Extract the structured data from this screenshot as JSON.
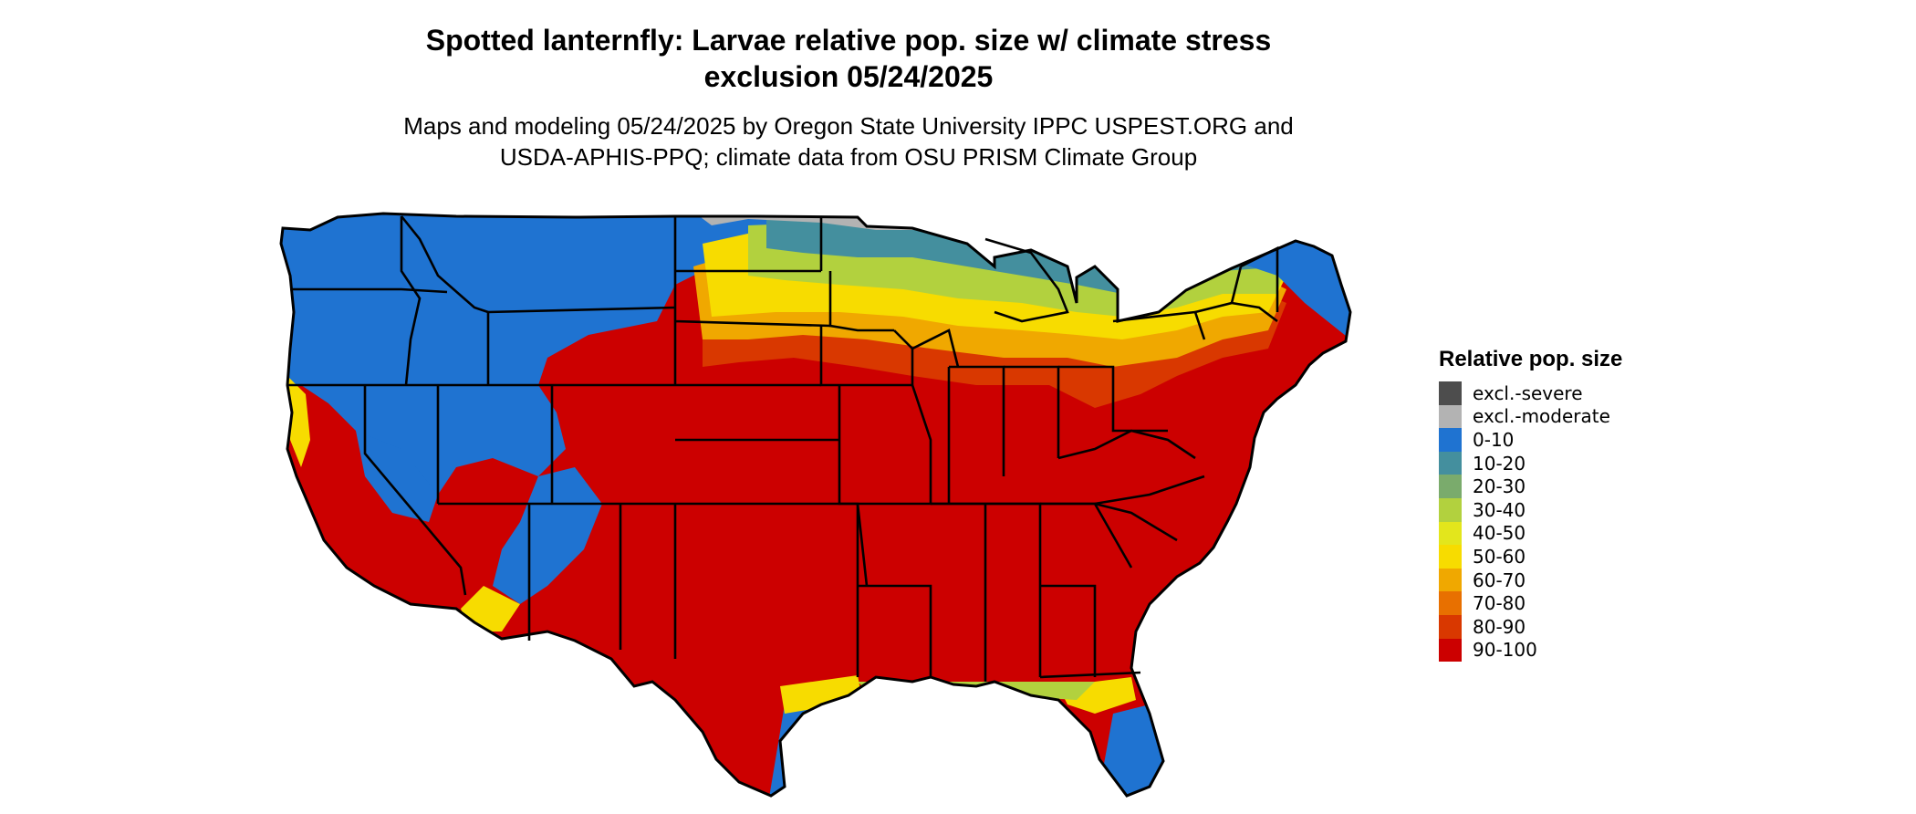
{
  "title": {
    "line1": "Spotted lanternfly: Larvae relative pop. size w/ climate stress",
    "line2": "exclusion 05/24/2025"
  },
  "subtitle": {
    "line1": "Maps and modeling 05/24/2025 by Oregon State University IPPC USPEST.ORG and",
    "line2": "USDA-APHIS-PPQ; climate data from OSU PRISM Climate Group"
  },
  "legend": {
    "title": "Relative pop. size",
    "items": [
      {
        "label": "excl.-severe",
        "color": "#4d4d4d"
      },
      {
        "label": "excl.-moderate",
        "color": "#b3b3b3"
      },
      {
        "label": "0-10",
        "color": "#1f73d1"
      },
      {
        "label": "10-20",
        "color": "#448f9e"
      },
      {
        "label": "20-30",
        "color": "#7aab6c"
      },
      {
        "label": "30-40",
        "color": "#b2d13e"
      },
      {
        "label": "40-50",
        "color": "#e3e61c"
      },
      {
        "label": "50-60",
        "color": "#f7dc00"
      },
      {
        "label": "60-70",
        "color": "#f0a800"
      },
      {
        "label": "70-80",
        "color": "#e87000"
      },
      {
        "label": "80-90",
        "color": "#d93800"
      },
      {
        "label": "90-100",
        "color": "#cc0000"
      }
    ]
  },
  "map": {
    "region": "Contiguous United States",
    "border_color": "#000000",
    "background_color": "#ffffff"
  }
}
